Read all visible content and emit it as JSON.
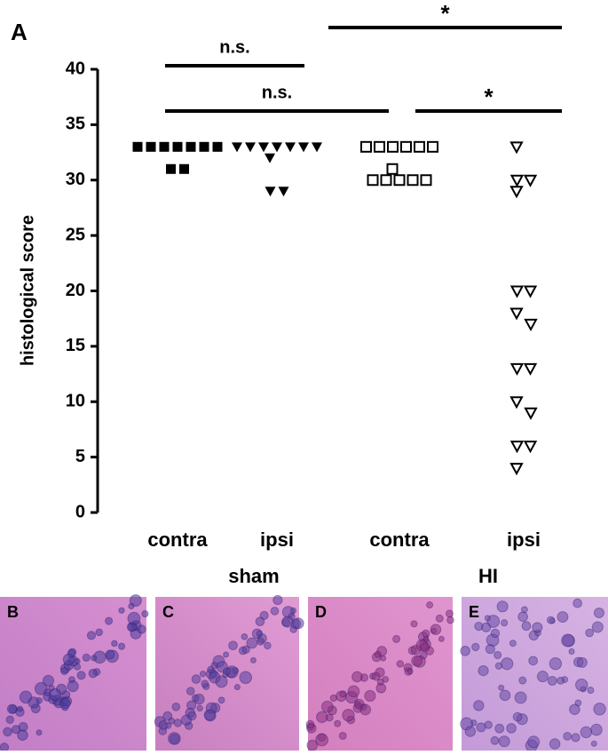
{
  "chart_data": {
    "type": "strip",
    "panel_label": "A",
    "y_label": "histological score",
    "categories": [
      "contra",
      "ipsi",
      "contra",
      "ipsi"
    ],
    "groups": [
      {
        "name": "sham",
        "span": [
          0,
          1
        ]
      },
      {
        "name": "HI",
        "span": [
          2,
          3
        ]
      }
    ],
    "markers": [
      "filled-square",
      "filled-triangle",
      "open-square",
      "open-triangle"
    ],
    "color": "#000000",
    "values": [
      [
        33,
        33,
        33,
        33,
        33,
        33,
        33,
        31,
        31
      ],
      [
        33,
        33,
        32,
        33,
        33,
        33,
        33,
        33,
        29,
        29
      ],
      [
        33,
        33,
        33,
        33,
        33,
        33,
        31,
        30,
        30,
        30,
        30,
        30
      ],
      [
        33,
        30,
        29,
        30,
        20,
        20,
        18,
        17,
        13,
        13,
        10,
        9,
        6,
        6,
        4
      ]
    ],
    "ylim": [
      0,
      40
    ],
    "yticks": [
      0,
      5,
      10,
      15,
      20,
      25,
      30,
      35,
      40
    ],
    "annotations": [
      {
        "text": "n.s.",
        "from": 0,
        "to": 1
      },
      {
        "text": "n.s.",
        "from": 0,
        "to": 2
      },
      {
        "text": "*",
        "from": 1,
        "to": 3
      },
      {
        "text": "*",
        "from": 2,
        "to": 3
      }
    ]
  },
  "images": [
    {
      "label": "B"
    },
    {
      "label": "C"
    },
    {
      "label": "D"
    },
    {
      "label": "E"
    }
  ]
}
